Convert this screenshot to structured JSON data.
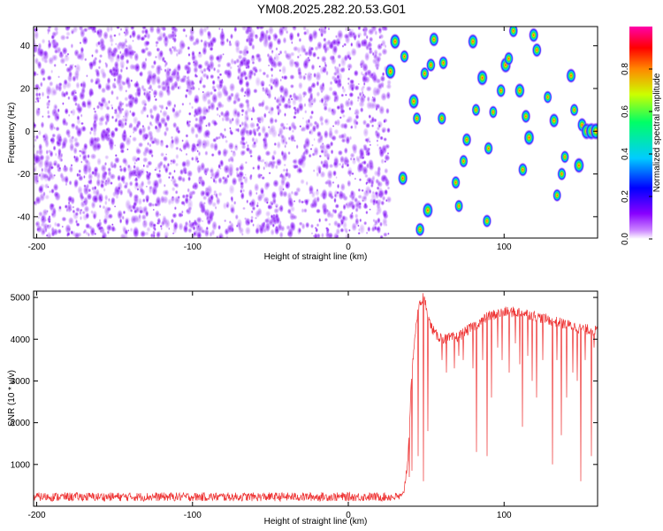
{
  "title": "YM08.2025.282.20.53.G01",
  "chart_data": [
    {
      "type": "heatmap",
      "xlabel": "Height of straight line (km)",
      "ylabel": "Frequency (Hz)",
      "xlim": [
        -202,
        160
      ],
      "ylim": [
        -50,
        49
      ],
      "xticks": [
        -200,
        -100,
        0,
        100
      ],
      "yticks": [
        -40,
        -20,
        0,
        20,
        40
      ],
      "noise_region_x": [
        -202,
        24
      ],
      "colorbar": {
        "label": "Normalized spectral amplitude",
        "range": [
          0,
          1
        ],
        "ticks": [
          0.0,
          0.2,
          0.4,
          0.6,
          0.8
        ],
        "colors": [
          "#ffffff",
          "#cc88ff",
          "#8800ff",
          "#0000ff",
          "#00ccff",
          "#00ff66",
          "#ccff00",
          "#ff8800",
          "#ff0000",
          "#ff00aa"
        ]
      },
      "peaks": [
        {
          "x": 27,
          "y": 28,
          "a": 0.85
        },
        {
          "x": 30,
          "y": 42,
          "a": 0.8
        },
        {
          "x": 35,
          "y": -22,
          "a": 0.7
        },
        {
          "x": 36,
          "y": 35,
          "a": 0.55
        },
        {
          "x": 42,
          "y": 14,
          "a": 0.8
        },
        {
          "x": 44,
          "y": 6,
          "a": 0.5
        },
        {
          "x": 46,
          "y": -46,
          "a": 0.6
        },
        {
          "x": 49,
          "y": 27,
          "a": 0.55
        },
        {
          "x": 51,
          "y": -37,
          "a": 0.8
        },
        {
          "x": 53,
          "y": 31,
          "a": 0.6
        },
        {
          "x": 55,
          "y": 43,
          "a": 0.7
        },
        {
          "x": 60,
          "y": 6,
          "a": 0.55
        },
        {
          "x": 61,
          "y": 32,
          "a": 0.6
        },
        {
          "x": 69,
          "y": -24,
          "a": 0.55
        },
        {
          "x": 71,
          "y": -35,
          "a": 0.5
        },
        {
          "x": 74,
          "y": -14,
          "a": 0.55
        },
        {
          "x": 76,
          "y": -4,
          "a": 0.6
        },
        {
          "x": 80,
          "y": 42,
          "a": 0.75
        },
        {
          "x": 82,
          "y": 10,
          "a": 0.5
        },
        {
          "x": 86,
          "y": 25,
          "a": 0.85
        },
        {
          "x": 89,
          "y": -42,
          "a": 0.55
        },
        {
          "x": 90,
          "y": -8,
          "a": 0.55
        },
        {
          "x": 93,
          "y": 9,
          "a": 0.5
        },
        {
          "x": 98,
          "y": 19,
          "a": 0.6
        },
        {
          "x": 101,
          "y": 31,
          "a": 0.85
        },
        {
          "x": 103,
          "y": 34,
          "a": 0.6
        },
        {
          "x": 106,
          "y": 47,
          "a": 0.6
        },
        {
          "x": 110,
          "y": 19,
          "a": 0.75
        },
        {
          "x": 112,
          "y": -18,
          "a": 0.6
        },
        {
          "x": 114,
          "y": 7,
          "a": 0.6
        },
        {
          "x": 116,
          "y": -3,
          "a": 0.8
        },
        {
          "x": 119,
          "y": 45,
          "a": 0.7
        },
        {
          "x": 121,
          "y": 38,
          "a": 0.65
        },
        {
          "x": 128,
          "y": 16,
          "a": 0.5
        },
        {
          "x": 132,
          "y": 5,
          "a": 0.7
        },
        {
          "x": 134,
          "y": -30,
          "a": 0.5
        },
        {
          "x": 137,
          "y": -20,
          "a": 0.55
        },
        {
          "x": 139,
          "y": -12,
          "a": 0.5
        },
        {
          "x": 143,
          "y": 26,
          "a": 0.7
        },
        {
          "x": 145,
          "y": 10,
          "a": 0.5
        },
        {
          "x": 148,
          "y": -16,
          "a": 0.8
        },
        {
          "x": 150,
          "y": 3,
          "a": 0.65
        },
        {
          "x": 153,
          "y": 0,
          "a": 0.95
        },
        {
          "x": 156,
          "y": 0,
          "a": 1.0
        },
        {
          "x": 159,
          "y": 0,
          "a": 0.98
        }
      ]
    },
    {
      "type": "line",
      "xlabel": "Height of straight line (km)",
      "ylabel": "SNR (10 * v/v)",
      "xlim": [
        -202,
        160
      ],
      "ylim": [
        0,
        5150
      ],
      "xticks": [
        -200,
        -100,
        0,
        100
      ],
      "yticks": [
        1000,
        2000,
        3000,
        4000,
        5000
      ],
      "color": "#ee3333",
      "noise_level": [
        120,
        330
      ],
      "profile": {
        "x": [
          -202,
          35,
          38,
          40,
          42,
          44,
          46,
          48,
          50,
          52,
          56,
          62,
          70,
          80,
          90,
          100,
          110,
          120,
          130,
          140,
          150,
          160
        ],
        "y": [
          220,
          220,
          1000,
          2600,
          3800,
          4500,
          4850,
          5000,
          4800,
          4400,
          4100,
          4000,
          4050,
          4300,
          4550,
          4650,
          4650,
          4550,
          4450,
          4350,
          4250,
          4200
        ]
      },
      "dips": [
        {
          "x": 39,
          "y": 700
        },
        {
          "x": 41,
          "y": 850
        },
        {
          "x": 45,
          "y": 1200
        },
        {
          "x": 48,
          "y": 600
        },
        {
          "x": 51,
          "y": 1800
        },
        {
          "x": 60,
          "y": 3500
        },
        {
          "x": 63,
          "y": 3200
        },
        {
          "x": 68,
          "y": 3300
        },
        {
          "x": 71,
          "y": 3600
        },
        {
          "x": 74,
          "y": 3500
        },
        {
          "x": 80,
          "y": 3300
        },
        {
          "x": 82,
          "y": 1300
        },
        {
          "x": 86,
          "y": 3500
        },
        {
          "x": 89,
          "y": 1200
        },
        {
          "x": 92,
          "y": 2600
        },
        {
          "x": 96,
          "y": 3800
        },
        {
          "x": 99,
          "y": 3500
        },
        {
          "x": 103,
          "y": 3200
        },
        {
          "x": 107,
          "y": 3900
        },
        {
          "x": 110,
          "y": 3400
        },
        {
          "x": 112,
          "y": 1900
        },
        {
          "x": 115,
          "y": 3600
        },
        {
          "x": 118,
          "y": 3000
        },
        {
          "x": 121,
          "y": 2600
        },
        {
          "x": 125,
          "y": 3500
        },
        {
          "x": 131,
          "y": 1000
        },
        {
          "x": 134,
          "y": 3500
        },
        {
          "x": 137,
          "y": 1700
        },
        {
          "x": 140,
          "y": 2600
        },
        {
          "x": 144,
          "y": 3200
        },
        {
          "x": 147,
          "y": 3000
        },
        {
          "x": 149,
          "y": 600
        },
        {
          "x": 152,
          "y": 3500
        },
        {
          "x": 156,
          "y": 1200
        },
        {
          "x": 158,
          "y": 3800
        }
      ]
    }
  ]
}
